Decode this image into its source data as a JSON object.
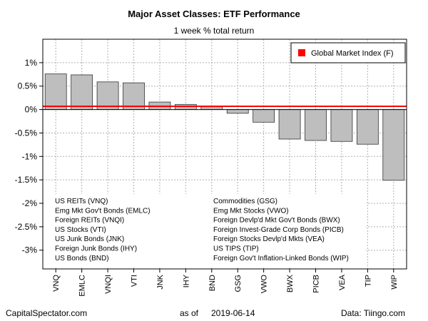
{
  "chart_data": {
    "type": "bar",
    "title": "Major Asset Classes: ETF Performance",
    "subtitle": "1 week % total return",
    "categories": [
      "VNQ",
      "EMLC",
      "VNQI",
      "VTI",
      "JNK",
      "IHY",
      "BND",
      "GSG",
      "VWO",
      "BWX",
      "PICB",
      "VEA",
      "TIP",
      "WIP"
    ],
    "values": [
      0.76,
      0.74,
      0.59,
      0.57,
      0.16,
      0.11,
      0.06,
      -0.08,
      -0.27,
      -0.63,
      -0.66,
      -0.68,
      -0.74,
      -1.51
    ],
    "reference_line": {
      "name": "Global Market Index (F)",
      "value": 0.07,
      "color": "#ff0000"
    },
    "ylim": [
      -3.4,
      1.5
    ],
    "yticks": [
      1,
      0.5,
      0,
      -0.5,
      -1,
      -1.5,
      -2,
      -2.5,
      -3
    ],
    "ytick_labels": [
      "1%",
      "0.5%",
      "0%",
      "-0.5%",
      "-1%",
      "-1.5%",
      "-2%",
      "-2.5%",
      "-3%"
    ],
    "bar_color": "#bebebe",
    "grid": true,
    "legend_position": "top-right",
    "key_left": [
      "US REITs (VNQ)",
      "Emg Mkt Gov't Bonds (EMLC)",
      "Foreign REITs (VNQI)",
      "US Stocks (VTI)",
      "US Junk Bonds (JNK)",
      "Foreign Junk Bonds (IHY)",
      "US Bonds (BND)"
    ],
    "key_right": [
      "Commodities (GSG)",
      "Emg Mkt Stocks (VWO)",
      "Foreign Devlp'd Mkt Gov't Bonds (BWX)",
      "Foreign Invest-Grade Corp Bonds (PICB)",
      "Foreign Stocks Devlp'd Mkts (VEA)",
      "US TIPS (TIP)",
      "Foreign Gov't Inflation-Linked Bonds (WIP)"
    ]
  },
  "footer": {
    "source_left": "CapitalSpectator.com",
    "as_of_label": "as of",
    "as_of_date": "2019-06-14",
    "source_right": "Data: Tiingo.com"
  }
}
